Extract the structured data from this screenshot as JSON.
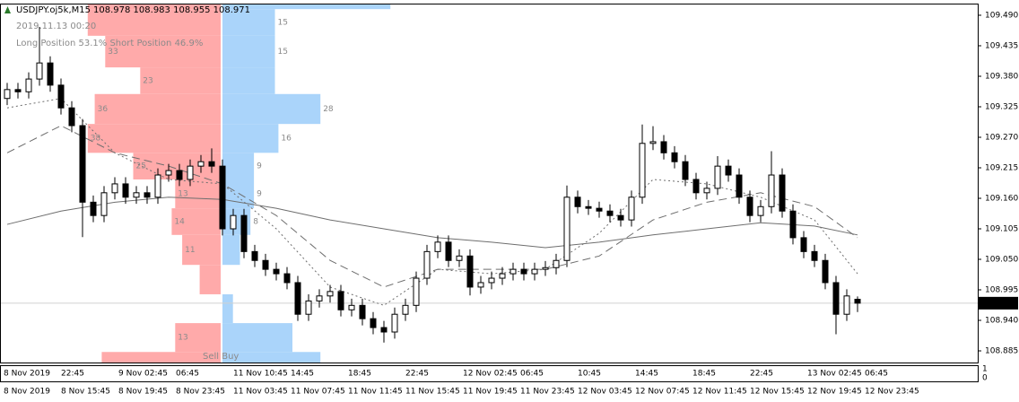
{
  "chart_data": {
    "type": "candlestick",
    "symbol": "USDJPY.oj5k,M15",
    "ohlc": [
      108.978,
      108.983,
      108.955,
      108.971
    ],
    "timestamp": "2019.11.13 00:20",
    "positions": "Long Position 53.1% Short Position 46.9%",
    "open": [
      109.34,
      109.356,
      109.352,
      109.375,
      109.404,
      109.364,
      109.323,
      109.291,
      109.153,
      109.129,
      109.17,
      109.186,
      109.162,
      109.17,
      109.162,
      109.202,
      109.21,
      109.194,
      109.218,
      109.226,
      109.218,
      109.105,
      109.129,
      109.064,
      109.048,
      109.032,
      109.024,
      109.008,
      108.951,
      108.975,
      108.984,
      108.992,
      108.959,
      108.967,
      108.943,
      108.927,
      108.919,
      108.951,
      108.967,
      109.016,
      109.064,
      109.081,
      109.048,
      109.056,
      109.0,
      109.008,
      109.016,
      109.024,
      109.032,
      109.024,
      109.032,
      109.035,
      109.048,
      109.162,
      109.145,
      109.142,
      109.137,
      109.129,
      109.121,
      109.162,
      109.259,
      109.262,
      109.242,
      109.226,
      109.194,
      109.17,
      109.178,
      109.218,
      109.202,
      109.162,
      109.129,
      109.145,
      109.202,
      109.137,
      109.089,
      109.064,
      109.048,
      109.008,
      108.951,
      108.978
    ],
    "high": [
      109.368,
      109.368,
      109.387,
      109.469,
      109.416,
      109.376,
      109.335,
      109.303,
      109.165,
      109.182,
      109.198,
      109.198,
      109.182,
      109.182,
      109.214,
      109.222,
      109.222,
      109.23,
      109.238,
      109.25,
      109.23,
      109.141,
      109.141,
      109.076,
      109.06,
      109.044,
      109.036,
      109.02,
      108.987,
      108.996,
      109.004,
      109.004,
      108.979,
      108.979,
      108.955,
      108.939,
      108.963,
      108.979,
      109.028,
      109.076,
      109.093,
      109.093,
      109.068,
      109.068,
      109.02,
      109.028,
      109.036,
      109.044,
      109.044,
      109.044,
      109.047,
      109.06,
      109.183,
      109.174,
      109.157,
      109.154,
      109.149,
      109.141,
      109.174,
      109.293,
      109.29,
      109.274,
      109.254,
      109.238,
      109.206,
      109.19,
      109.236,
      109.23,
      109.214,
      109.174,
      109.157,
      109.245,
      109.214,
      109.149,
      109.101,
      109.076,
      109.06,
      109.02,
      108.996,
      108.983
    ],
    "low": [
      109.328,
      109.34,
      109.34,
      109.363,
      109.352,
      109.311,
      109.279,
      109.09,
      109.117,
      109.117,
      109.158,
      109.15,
      109.15,
      109.15,
      109.15,
      109.19,
      109.182,
      109.182,
      109.206,
      109.206,
      109.093,
      109.093,
      109.052,
      109.036,
      109.02,
      109.012,
      108.996,
      108.939,
      108.939,
      108.963,
      108.972,
      108.947,
      108.947,
      108.931,
      108.915,
      108.9,
      108.907,
      108.939,
      108.955,
      109.004,
      109.052,
      109.036,
      109.036,
      108.985,
      108.988,
      108.996,
      109.004,
      109.012,
      109.012,
      109.012,
      109.02,
      109.023,
      109.036,
      109.133,
      109.13,
      109.125,
      109.117,
      109.109,
      109.109,
      109.15,
      109.247,
      109.23,
      109.214,
      109.182,
      109.158,
      109.158,
      109.166,
      109.19,
      109.15,
      109.117,
      109.117,
      109.133,
      109.125,
      109.077,
      109.052,
      109.036,
      108.996,
      108.915,
      108.939,
      108.955
    ],
    "close": [
      109.356,
      109.352,
      109.375,
      109.404,
      109.364,
      109.323,
      109.291,
      109.153,
      109.129,
      109.17,
      109.186,
      109.162,
      109.17,
      109.162,
      109.202,
      109.21,
      109.194,
      109.218,
      109.226,
      109.218,
      109.105,
      109.129,
      109.064,
      109.048,
      109.032,
      109.024,
      109.008,
      108.951,
      108.975,
      108.984,
      108.992,
      108.959,
      108.967,
      108.943,
      108.927,
      108.919,
      108.951,
      108.967,
      109.016,
      109.064,
      109.081,
      109.048,
      109.056,
      109.0,
      109.008,
      109.016,
      109.024,
      109.032,
      109.024,
      109.032,
      109.035,
      109.048,
      109.162,
      109.145,
      109.142,
      109.137,
      109.129,
      109.121,
      109.162,
      109.259,
      109.262,
      109.242,
      109.226,
      109.194,
      109.17,
      109.178,
      109.218,
      109.202,
      109.162,
      109.129,
      109.145,
      109.202,
      109.137,
      109.089,
      109.064,
      109.048,
      109.008,
      108.951,
      108.984,
      108.971
    ],
    "ma_index": [
      0,
      5,
      10,
      15,
      20,
      25,
      30,
      35,
      40,
      45,
      50,
      55,
      60,
      65,
      70,
      75,
      79
    ],
    "moving_averages": [
      {
        "color": "#6e6e6e",
        "dash": "none",
        "values": [
          109.113,
          109.137,
          109.153,
          109.162,
          109.158,
          109.142,
          109.121,
          109.105,
          109.089,
          109.081,
          109.071,
          109.081,
          109.094,
          109.105,
          109.116,
          109.11,
          109.094
        ]
      },
      {
        "color": "#6e6e6e",
        "dash": "9 5",
        "values": [
          109.242,
          109.291,
          109.242,
          109.218,
          109.186,
          109.129,
          109.048,
          109.0,
          109.032,
          109.032,
          109.032,
          109.056,
          109.121,
          109.153,
          109.17,
          109.145,
          109.089
        ]
      },
      {
        "color": "#6e6e6e",
        "dash": "2 3",
        "values": [
          109.323,
          109.34,
          109.242,
          109.194,
          109.186,
          109.105,
          109.0,
          108.967,
          109.032,
          109.024,
          109.032,
          109.097,
          109.194,
          109.186,
          109.162,
          109.121,
          109.024
        ]
      }
    ],
    "profile": {
      "levels": [
        109.511,
        109.501,
        109.453,
        109.396,
        109.348,
        109.294,
        109.242,
        109.194,
        109.142,
        109.094,
        109.04,
        108.987,
        108.935,
        108.883,
        108.864
      ],
      "long": [
        38,
        38,
        33,
        23,
        36,
        38,
        25,
        13,
        14,
        11,
        6,
        0,
        13,
        34
      ],
      "long_labels": [
        null,
        null,
        "33",
        "23",
        "36",
        "38",
        "25",
        "13",
        "14",
        "11",
        null,
        null,
        "13",
        null
      ],
      "short": [
        48,
        15,
        15,
        15,
        28,
        16,
        9,
        9,
        8,
        5,
        0,
        3,
        20,
        28
      ],
      "short_labels": [
        null,
        "15",
        "15",
        null,
        "28",
        "16",
        "9",
        "9",
        "8",
        null,
        null,
        null,
        null,
        null
      ],
      "long_color": "#ffaaaa",
      "short_color": "#aad4fa",
      "legend": "Sell Buy"
    },
    "current_price": 108.971,
    "ylim": [
      108.864,
      109.511
    ],
    "yticks": [
      {
        "value": 109.49,
        "label": "109.490"
      },
      109.435,
      {
        "value": 109.38,
        "label": "109.380"
      },
      109.325,
      {
        "value": 109.27,
        "label": "109.270"
      },
      109.215,
      {
        "value": 109.16,
        "label": "109.160"
      },
      109.105,
      {
        "value": 109.05,
        "label": "109.050"
      },
      108.995,
      {
        "value": 108.94,
        "label": "108.940"
      },
      108.885
    ],
    "sub_ticks": [
      1,
      0
    ],
    "time_labels_top": [
      "8 Nov 2019",
      "22:45",
      "9 Nov 02:45",
      "06:45",
      "11 Nov 10:45",
      "14:45",
      "18:45",
      "22:45",
      "12 Nov 02:45",
      "06:45",
      "10:45",
      "14:45",
      "18:45",
      "22:45",
      "13 Nov 02:45",
      "06:45"
    ],
    "time_labels_bottom": [
      "8 Nov 2019",
      "8 Nov 15:45",
      "8 Nov 19:45",
      "8 Nov 23:45",
      "11 Nov 03:45",
      "11 Nov 07:45",
      "11 Nov 11:45",
      "11 Nov 15:45",
      "11 Nov 19:45",
      "11 Nov 23:45",
      "12 Nov 03:45",
      "12 Nov 07:45",
      "12 Nov 11:45",
      "12 Nov 15:45",
      "12 Nov 19:45",
      "12 Nov 23:45"
    ]
  }
}
